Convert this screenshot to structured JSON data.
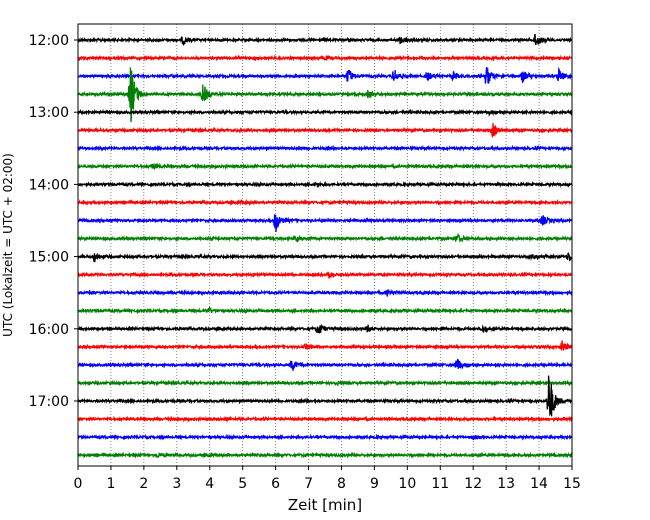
{
  "chart_data": {
    "type": "line",
    "chart_kind": "helicorder seismogram",
    "xlabel": "Zeit  [min]",
    "ylabel": "UTC (Lokalzeit = UTC + 02:00)",
    "xlim": [
      0,
      15
    ],
    "x_ticks": [
      0,
      1,
      2,
      3,
      4,
      5,
      6,
      7,
      8,
      9,
      10,
      11,
      12,
      13,
      14,
      15
    ],
    "x_grid": true,
    "grid_style": "dotted",
    "trace_interval_minutes": 15,
    "y_tick_labels": [
      "12:00",
      "13:00",
      "14:00",
      "15:00",
      "16:00",
      "17:00"
    ],
    "y_tick_trace_index": [
      0,
      4,
      8,
      12,
      16,
      20
    ],
    "colors": [
      "#000000",
      "#ff0000",
      "#0000ff",
      "#008000"
    ],
    "traces": [
      {
        "start": "12:00",
        "events": [
          {
            "t": 3.2,
            "a": 0.5
          },
          {
            "t": 9.8,
            "a": 0.45
          },
          {
            "t": 13.9,
            "a": 0.9
          }
        ]
      },
      {
        "start": "12:15",
        "events": [
          {
            "t": 7.5,
            "a": 0.2
          }
        ]
      },
      {
        "start": "12:30",
        "events": [
          {
            "t": 8.2,
            "a": 0.9
          },
          {
            "t": 9.6,
            "a": 0.85
          },
          {
            "t": 10.6,
            "a": 0.5
          },
          {
            "t": 11.4,
            "a": 0.5
          },
          {
            "t": 12.4,
            "a": 1.2
          },
          {
            "t": 13.5,
            "a": 0.7
          },
          {
            "t": 14.6,
            "a": 0.8
          }
        ]
      },
      {
        "start": "12:45",
        "events": [
          {
            "t": 1.6,
            "a": 3.5
          },
          {
            "t": 3.8,
            "a": 1.1
          },
          {
            "t": 8.8,
            "a": 0.4
          }
        ]
      },
      {
        "start": "13:00",
        "events": [
          {
            "t": 12.5,
            "a": 0.2
          }
        ]
      },
      {
        "start": "13:15",
        "events": [
          {
            "t": 12.6,
            "a": 0.75
          }
        ]
      },
      {
        "start": "13:30",
        "events": [
          {
            "t": 6.8,
            "a": 0.15
          }
        ]
      },
      {
        "start": "13:45",
        "events": [
          {
            "t": 2.3,
            "a": 0.3
          }
        ]
      },
      {
        "start": "14:00",
        "events": [
          {
            "t": 7.2,
            "a": 0.15
          }
        ]
      },
      {
        "start": "14:15",
        "events": [
          {
            "t": 5.0,
            "a": 0.15
          }
        ]
      },
      {
        "start": "14:30",
        "events": [
          {
            "t": 6.0,
            "a": 1.3
          },
          {
            "t": 14.1,
            "a": 0.6
          }
        ]
      },
      {
        "start": "14:45",
        "events": [
          {
            "t": 6.6,
            "a": 0.3
          },
          {
            "t": 11.5,
            "a": 0.5
          }
        ]
      },
      {
        "start": "15:00",
        "events": [
          {
            "t": 0.5,
            "a": 0.6
          },
          {
            "t": 14.9,
            "a": 0.6
          },
          {
            "t": 13.8,
            "a": 0.3
          }
        ]
      },
      {
        "start": "15:15",
        "events": [
          {
            "t": 7.6,
            "a": 0.4
          }
        ]
      },
      {
        "start": "15:30",
        "events": [
          {
            "t": 9.4,
            "a": 0.4
          }
        ]
      },
      {
        "start": "15:45",
        "events": [
          {
            "t": 4.0,
            "a": 0.2
          }
        ]
      },
      {
        "start": "16:00",
        "events": [
          {
            "t": 7.3,
            "a": 0.7
          },
          {
            "t": 8.8,
            "a": 0.4
          },
          {
            "t": 12.3,
            "a": 0.4
          }
        ]
      },
      {
        "start": "16:15",
        "events": [
          {
            "t": 6.9,
            "a": 0.35
          },
          {
            "t": 14.7,
            "a": 0.6
          }
        ]
      },
      {
        "start": "16:30",
        "events": [
          {
            "t": 6.5,
            "a": 0.7
          },
          {
            "t": 11.5,
            "a": 0.8
          }
        ]
      },
      {
        "start": "16:45",
        "events": [
          {
            "t": 7.8,
            "a": 0.15
          }
        ]
      },
      {
        "start": "17:00",
        "events": [
          {
            "t": 14.3,
            "a": 3.5
          }
        ]
      },
      {
        "start": "17:15",
        "events": [
          {
            "t": 4.5,
            "a": 0.15
          }
        ]
      },
      {
        "start": "17:30",
        "events": [
          {
            "t": 12.0,
            "a": 0.2
          }
        ]
      },
      {
        "start": "17:45",
        "events": [
          {
            "t": 2.4,
            "a": 0.25
          }
        ]
      }
    ]
  }
}
